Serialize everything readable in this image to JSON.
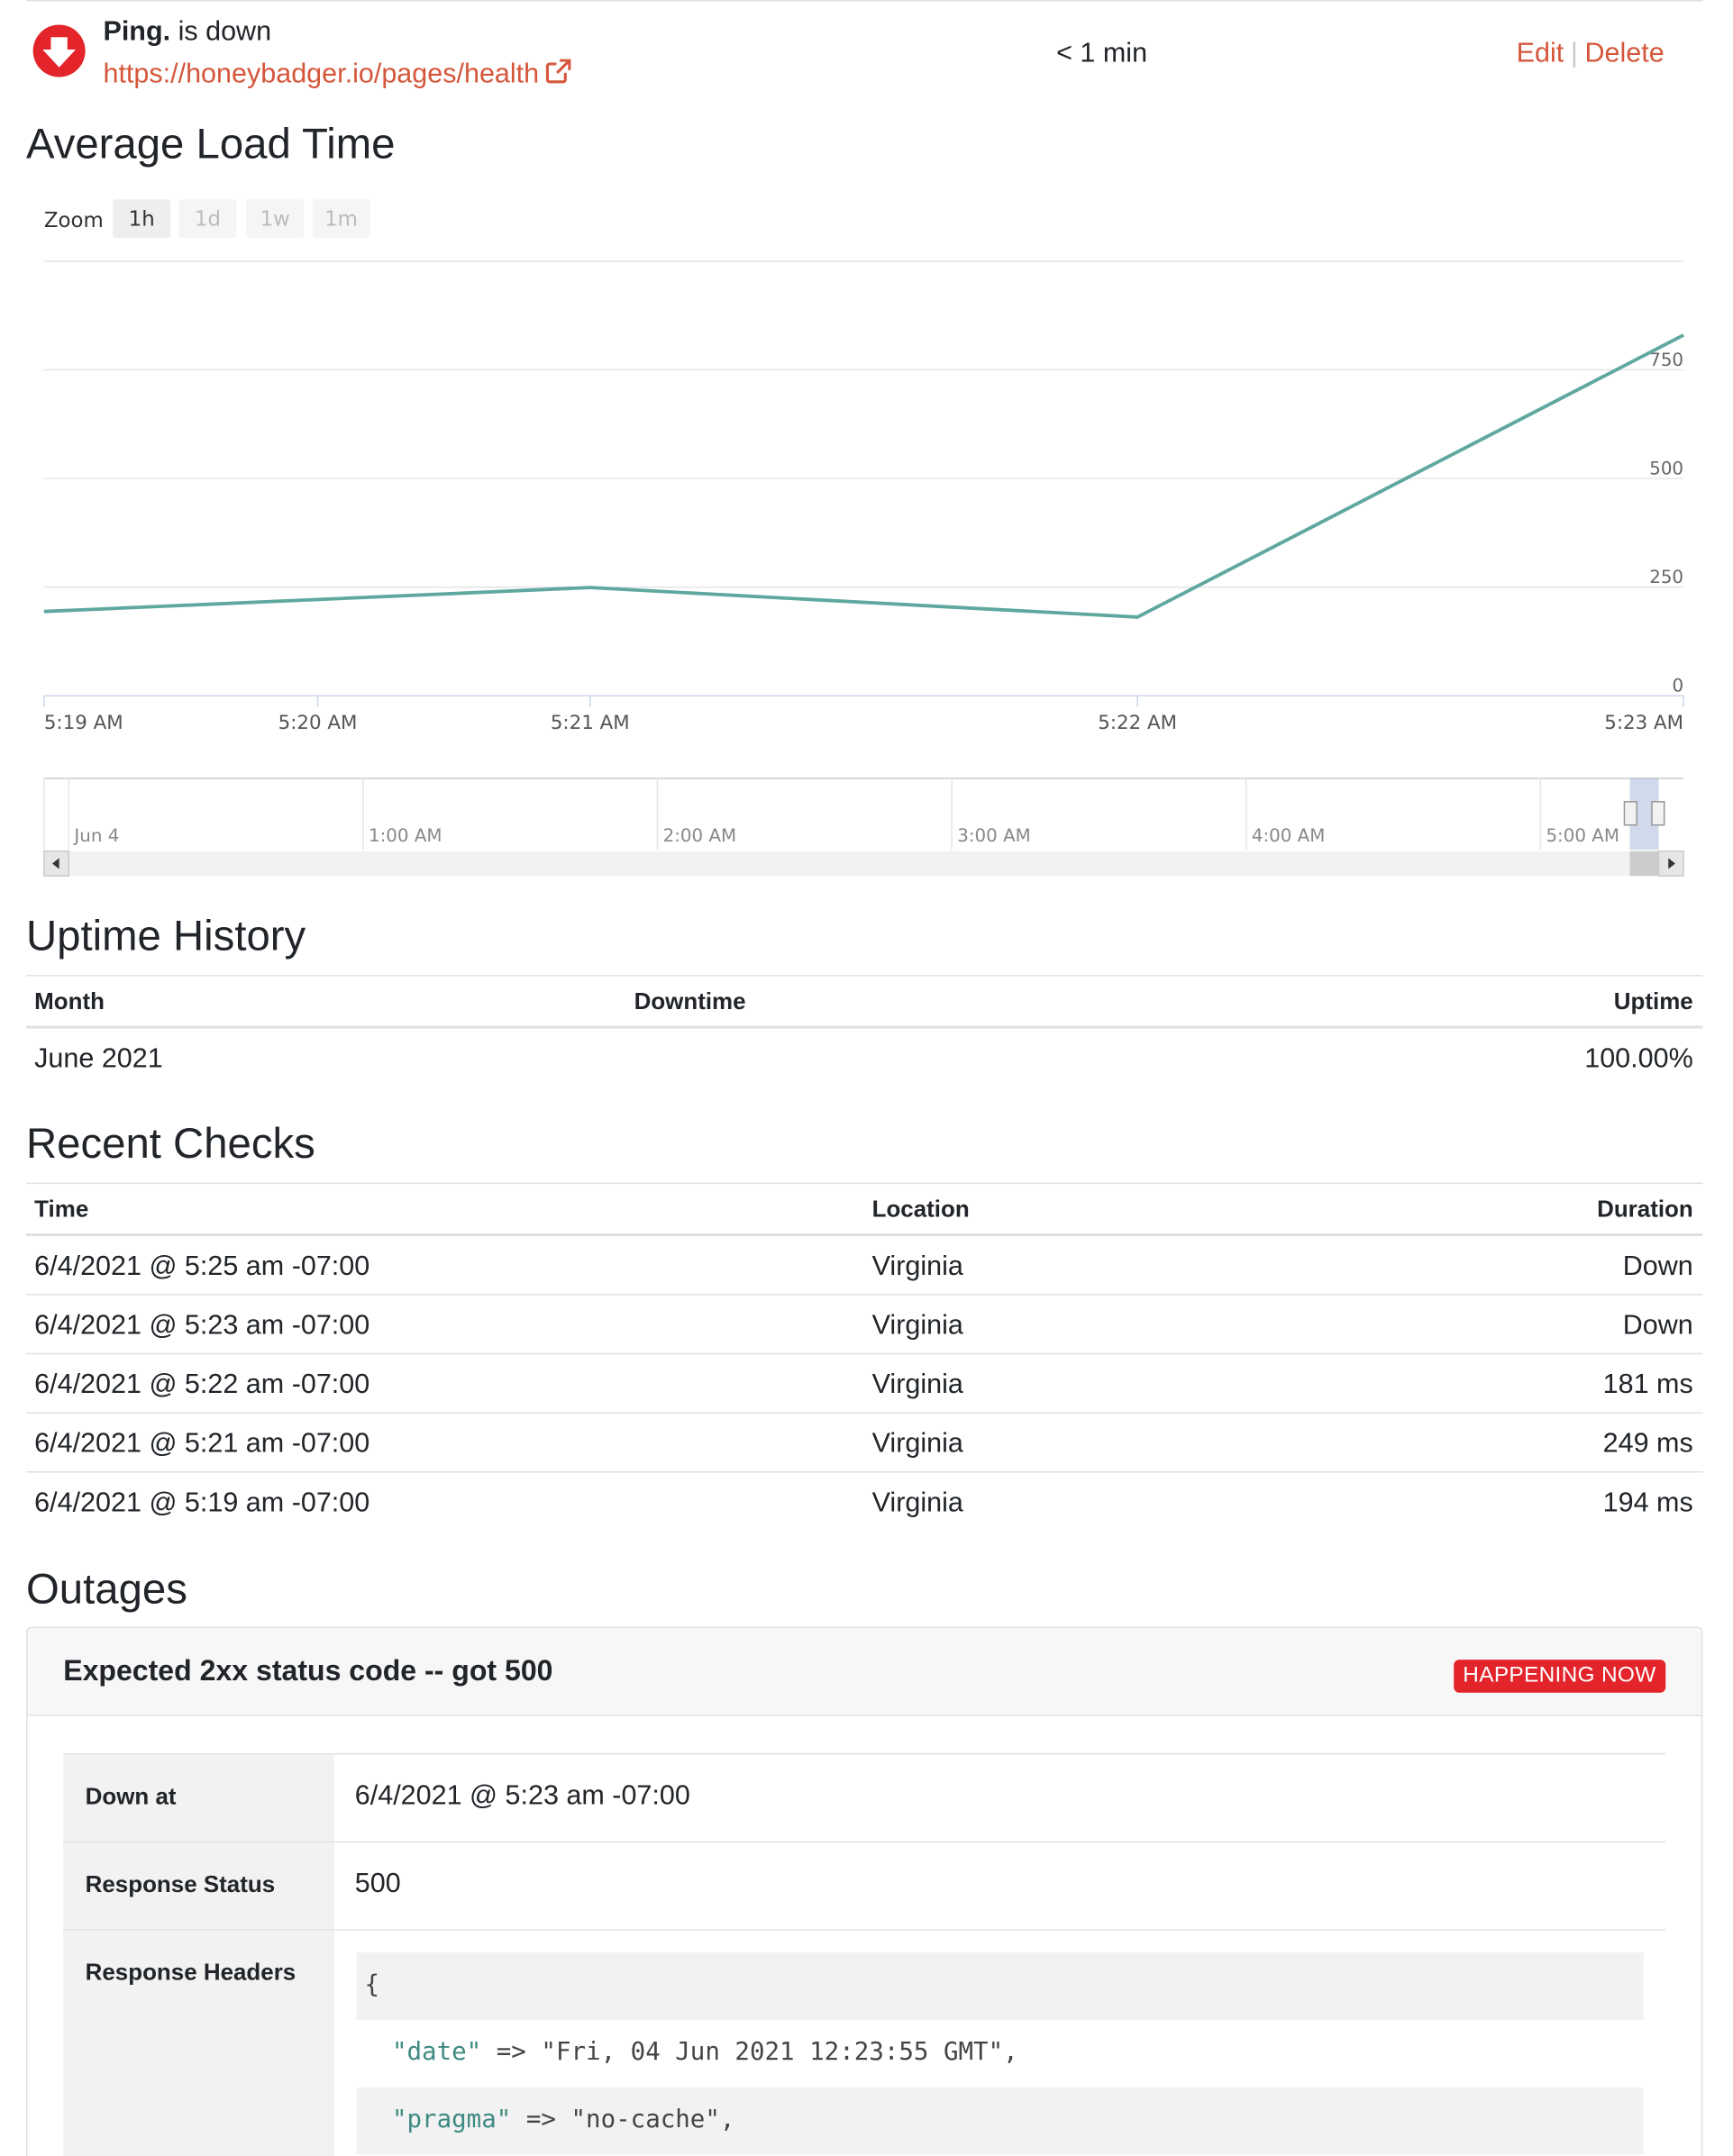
{
  "header": {
    "site_name": "Ping.",
    "status_text": "is down",
    "url": "https://honeybadger.io/pages/health",
    "last_check": "< 1 min",
    "edit_label": "Edit",
    "separator": "|",
    "delete_label": "Delete",
    "status_color": "#e3242b",
    "link_color": "#d5573b"
  },
  "load_time": {
    "title": "Average Load Time",
    "zoom_label": "Zoom",
    "zoom_options": [
      "1h",
      "1d",
      "1w",
      "1m"
    ],
    "zoom_selected": "1h",
    "navigator_labels": [
      "Jun 4",
      "1:00 AM",
      "2:00 AM",
      "3:00 AM",
      "4:00 AM",
      "5:00 AM"
    ]
  },
  "chart_data": {
    "type": "line",
    "title": "",
    "xlabel": "",
    "ylabel": "",
    "x": [
      "5:19 AM",
      "5:21 AM",
      "5:22 AM",
      "5:23 AM"
    ],
    "x_minutes": [
      0,
      2,
      3,
      4
    ],
    "x_ticks": [
      "5:19 AM",
      "5:20 AM",
      "5:21 AM",
      "5:22 AM",
      "5:23 AM"
    ],
    "values": [
      194,
      249,
      181,
      830
    ],
    "y_ticks": [
      "0",
      "250",
      "500",
      "750"
    ],
    "ylim": [
      0,
      1000
    ],
    "grid": true,
    "legend": "none",
    "line_color": "#5fa8a0"
  },
  "uptime": {
    "title": "Uptime History",
    "columns": [
      "Month",
      "Downtime",
      "Uptime"
    ],
    "rows": [
      {
        "month": "June 2021",
        "downtime": "",
        "uptime": "100.00%"
      }
    ]
  },
  "checks": {
    "title": "Recent Checks",
    "columns": [
      "Time",
      "Location",
      "Duration"
    ],
    "rows": [
      {
        "time": "6/4/2021 @ 5:25 am -07:00",
        "location": "Virginia",
        "duration": "Down"
      },
      {
        "time": "6/4/2021 @ 5:23 am -07:00",
        "location": "Virginia",
        "duration": "Down"
      },
      {
        "time": "6/4/2021 @ 5:22 am -07:00",
        "location": "Virginia",
        "duration": "181 ms"
      },
      {
        "time": "6/4/2021 @ 5:21 am -07:00",
        "location": "Virginia",
        "duration": "249 ms"
      },
      {
        "time": "6/4/2021 @ 5:19 am -07:00",
        "location": "Virginia",
        "duration": "194 ms"
      }
    ]
  },
  "outages": {
    "title": "Outages",
    "items": [
      {
        "title": "Expected 2xx status code -- got 500",
        "badge": "HAPPENING NOW",
        "down_at_label": "Down at",
        "down_at": "6/4/2021 @ 5:23 am -07:00",
        "status_label": "Response Status",
        "status": "500",
        "headers_label": "Response Headers",
        "headers_open": "{",
        "headers": [
          {
            "key": "\"date\"",
            "arrow": "=>",
            "value": "\"Fri, 04 Jun 2021 12:23:55 GMT\","
          },
          {
            "key": "\"pragma\"",
            "arrow": "=>",
            "value": "\"no-cache\","
          }
        ]
      }
    ]
  }
}
